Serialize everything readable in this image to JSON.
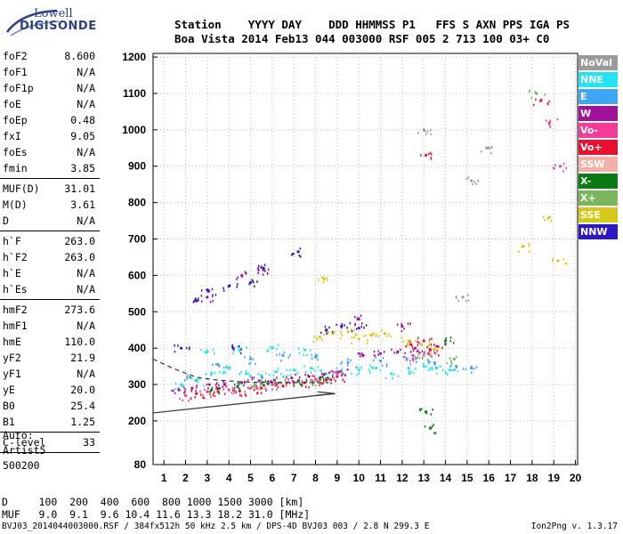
{
  "logo": {
    "line1": "Lowell",
    "line2": "DIGISONDE"
  },
  "header": {
    "row1": "Station    YYYY DAY    DDD HHMMSS P1   FFS S AXN PPS IGA PS",
    "row2": "Boa Vista 2014 Feb13 044 003000 RSF 005 2 713 100 03+ C0"
  },
  "params": {
    "group1": [
      {
        "name": "foF2",
        "value": "8.600"
      },
      {
        "name": "foF1",
        "value": "N/A"
      },
      {
        "name": "foF1p",
        "value": "N/A"
      },
      {
        "name": "foE",
        "value": "N/A"
      },
      {
        "name": "foEp",
        "value": "0.48"
      },
      {
        "name": "fxI",
        "value": "9.05"
      },
      {
        "name": "foEs",
        "value": "N/A"
      },
      {
        "name": "fmin",
        "value": "3.85"
      }
    ],
    "group2": [
      {
        "name": "MUF(D)",
        "value": "31.01"
      },
      {
        "name": "M(D)",
        "value": "3.61"
      },
      {
        "name": "D",
        "value": "N/A"
      }
    ],
    "group3": [
      {
        "name": "h`F",
        "value": "263.0"
      },
      {
        "name": "h`F2",
        "value": "263.0"
      },
      {
        "name": "h`E",
        "value": "N/A"
      },
      {
        "name": "h`Es",
        "value": "N/A"
      }
    ],
    "group4": [
      {
        "name": "hmF2",
        "value": "273.6"
      },
      {
        "name": "hmF1",
        "value": "N/A"
      },
      {
        "name": "hmE",
        "value": "110.0"
      },
      {
        "name": "yF2",
        "value": "21.9"
      },
      {
        "name": "yF1",
        "value": "N/A"
      },
      {
        "name": "yE",
        "value": "20.0"
      },
      {
        "name": "B0",
        "value": "25.4"
      },
      {
        "name": "B1",
        "value": "1.25"
      }
    ],
    "group5": [
      {
        "name": "C-level",
        "value": "33"
      }
    ]
  },
  "auto": {
    "line1": "Auto:",
    "line2": "Artist5",
    "line3": "500200"
  },
  "footer": {
    "d_row": "D     100  200  400  600  800 1000 1500 3000 [km]",
    "muf_row": "MUF   9.0  9.1  9.6 10.4 11.6 13.3 18.2 31.0 [MHz]",
    "file_row": "BVJ03_2014044003000.RSF / 384fx512h 50 kHz 2.5 km / DPS-4D BVJ03 003 / 2.8 N 299.3 E",
    "version": "Ion2Png v. 1.3.17"
  },
  "legend": [
    {
      "label": "NoVal",
      "color": "#9a9a9a"
    },
    {
      "label": "NNE",
      "color": "#22e4f4"
    },
    {
      "label": "E",
      "color": "#3ea6f2"
    },
    {
      "label": "W",
      "color": "#a0129a"
    },
    {
      "label": "Vo-",
      "color": "#f43c96"
    },
    {
      "label": "Vo+",
      "color": "#e8102e"
    },
    {
      "label": "SSW",
      "color": "#f2b0a6"
    },
    {
      "label": "X-",
      "color": "#0c7a12"
    },
    {
      "label": "X+",
      "color": "#7ab65c"
    },
    {
      "label": "SSE",
      "color": "#d6c81a"
    },
    {
      "label": "NNW",
      "color": "#2e18c2"
    }
  ],
  "chart_data": {
    "type": "scatter",
    "xlim": [
      0.5,
      20.1
    ],
    "ylim": [
      80,
      1210
    ],
    "x_ticks": [
      1,
      2,
      3,
      4,
      5,
      6,
      7,
      8,
      9,
      10,
      11,
      12,
      13,
      14,
      15,
      16,
      17,
      18,
      19,
      20
    ],
    "y_ticks": [
      80,
      200,
      300,
      400,
      500,
      600,
      700,
      800,
      900,
      1000,
      1100,
      1200
    ],
    "grid": true,
    "series": [
      {
        "name": "NNE",
        "color": "#22e4f4",
        "points": [
          [
            1.8,
            300
          ],
          [
            2.5,
            310
          ],
          [
            3.2,
            330
          ],
          [
            4.0,
            345
          ],
          [
            4.8,
            330
          ],
          [
            5.5,
            325
          ],
          [
            6.2,
            335
          ],
          [
            7.0,
            340
          ],
          [
            7.8,
            345
          ],
          [
            8.5,
            330
          ],
          [
            9.2,
            335
          ],
          [
            10.0,
            340
          ],
          [
            10.8,
            345
          ],
          [
            11.5,
            330
          ],
          [
            12.3,
            345
          ],
          [
            13.0,
            350
          ],
          [
            13.6,
            345
          ],
          [
            14.2,
            340
          ],
          [
            3.0,
            390
          ],
          [
            4.5,
            395
          ],
          [
            6.0,
            400
          ],
          [
            7.5,
            395
          ]
        ]
      },
      {
        "name": "E",
        "color": "#3ea6f2",
        "points": [
          [
            2.2,
            320
          ],
          [
            3.5,
            355
          ],
          [
            5.0,
            370
          ],
          [
            6.5,
            380
          ],
          [
            8.0,
            375
          ],
          [
            9.5,
            360
          ],
          [
            11.0,
            365
          ],
          [
            12.5,
            370
          ],
          [
            13.5,
            360
          ],
          [
            14.5,
            350
          ],
          [
            15.2,
            345
          ]
        ]
      },
      {
        "name": "W",
        "color": "#a0129a",
        "points": [
          [
            1.7,
            285
          ],
          [
            2.3,
            290
          ],
          [
            3.1,
            300
          ],
          [
            3.8,
            300
          ],
          [
            4.6,
            305
          ],
          [
            5.4,
            310
          ],
          [
            6.1,
            312
          ],
          [
            6.9,
            318
          ],
          [
            7.7,
            322
          ],
          [
            8.4,
            328
          ],
          [
            9.1,
            335
          ],
          [
            10.2,
            380
          ],
          [
            11.0,
            385
          ],
          [
            11.8,
            390
          ],
          [
            12.6,
            400
          ],
          [
            13.3,
            395
          ],
          [
            3.0,
            540
          ],
          [
            4.6,
            600
          ],
          [
            5.6,
            615
          ],
          [
            10.0,
            480
          ],
          [
            12.0,
            460
          ]
        ]
      },
      {
        "name": "Vo-",
        "color": "#f43c96",
        "points": [
          [
            2.0,
            270
          ],
          [
            3.0,
            280
          ],
          [
            4.0,
            285
          ],
          [
            5.0,
            290
          ],
          [
            6.0,
            300
          ],
          [
            7.0,
            305
          ],
          [
            8.0,
            315
          ],
          [
            9.0,
            330
          ],
          [
            12.5,
            380
          ],
          [
            13.2,
            385
          ],
          [
            18.8,
            1020
          ],
          [
            19.3,
            900
          ]
        ]
      },
      {
        "name": "Vo+",
        "color": "#e8102e",
        "points": [
          [
            2.5,
            275
          ],
          [
            3.5,
            280
          ],
          [
            4.5,
            282
          ],
          [
            5.5,
            290
          ],
          [
            6.5,
            296
          ],
          [
            7.5,
            305
          ],
          [
            8.5,
            312
          ],
          [
            9.0,
            322
          ],
          [
            12.4,
            410
          ],
          [
            13.0,
            420
          ],
          [
            13.6,
            405
          ],
          [
            18.4,
            1080
          ],
          [
            13.1,
            930
          ]
        ]
      },
      {
        "name": "X-",
        "color": "#0c7a12",
        "points": [
          [
            3.2,
            285
          ],
          [
            4.4,
            295
          ],
          [
            5.8,
            302
          ],
          [
            7.2,
            310
          ],
          [
            8.2,
            318
          ],
          [
            13.1,
            225
          ],
          [
            13.3,
            180
          ],
          [
            14.0,
            420
          ]
        ]
      },
      {
        "name": "X+",
        "color": "#7ab65c",
        "points": [
          [
            5.2,
            300
          ],
          [
            6.4,
            305
          ],
          [
            7.8,
            312
          ],
          [
            13.0,
            380
          ],
          [
            14.4,
            370
          ],
          [
            18.2,
            1100
          ]
        ]
      },
      {
        "name": "SSE",
        "color": "#d6c81a",
        "points": [
          [
            8.2,
            430
          ],
          [
            8.8,
            440
          ],
          [
            9.5,
            445
          ],
          [
            10.0,
            425
          ],
          [
            10.6,
            435
          ],
          [
            11.2,
            440
          ],
          [
            12.3,
            420
          ],
          [
            12.9,
            410
          ],
          [
            13.5,
            398
          ],
          [
            8.4,
            590
          ],
          [
            17.6,
            680
          ],
          [
            18.8,
            760
          ],
          [
            19.2,
            640
          ]
        ]
      },
      {
        "name": "NNW",
        "color": "#2e18c2",
        "points": [
          [
            2.5,
            530
          ],
          [
            3.0,
            560
          ],
          [
            4.0,
            570
          ],
          [
            5.0,
            580
          ],
          [
            5.6,
            620
          ],
          [
            7.2,
            665
          ],
          [
            8.5,
            450
          ],
          [
            9.2,
            460
          ],
          [
            10.0,
            455
          ],
          [
            1.8,
            400
          ],
          [
            4.2,
            400
          ]
        ]
      },
      {
        "name": "NoVal",
        "color": "#9a9a9a",
        "points": [
          [
            13.0,
            1000
          ],
          [
            15.2,
            860
          ],
          [
            14.8,
            540
          ],
          [
            15.9,
            950
          ]
        ]
      }
    ]
  }
}
